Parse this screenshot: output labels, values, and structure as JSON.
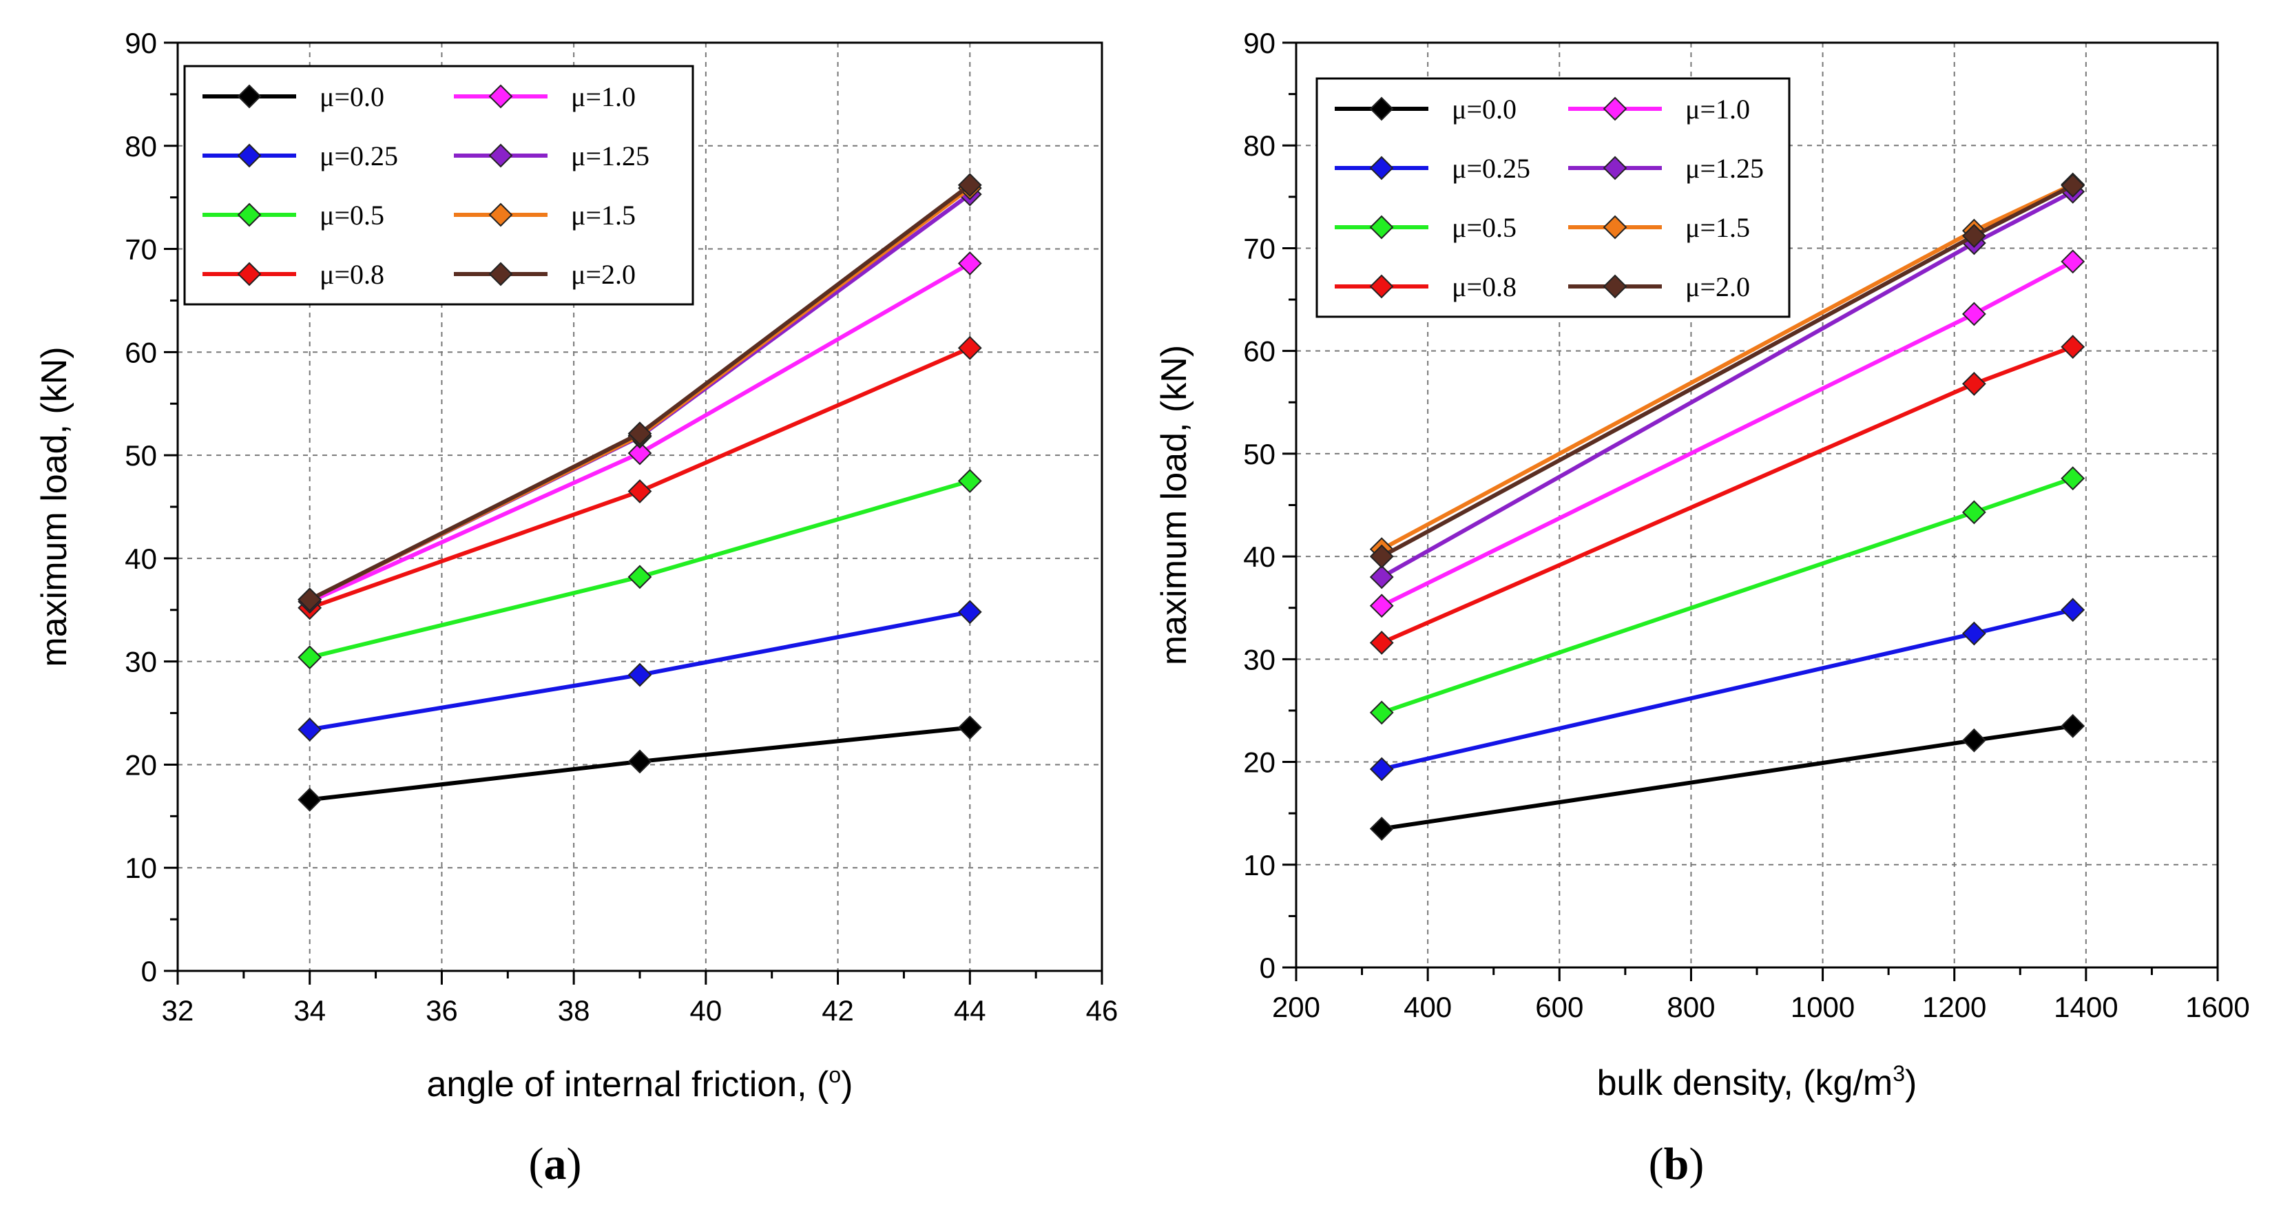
{
  "chart_data": [
    {
      "type": "line",
      "panel_label": [
        "(",
        "a",
        ")"
      ],
      "xlabel": "angle of internal friction, (",
      "xlabel_unit": "o",
      "xlabel_suffix": ")",
      "ylabel": "maximum load, (kN)",
      "xlim": [
        32,
        46
      ],
      "ylim": [
        0,
        90
      ],
      "xticks": [
        32,
        34,
        36,
        38,
        40,
        42,
        44,
        46
      ],
      "yticks": [
        0,
        10,
        20,
        30,
        40,
        50,
        60,
        70,
        80,
        90
      ],
      "grid": true,
      "legend_position": "top-left",
      "x": [
        34,
        39,
        44
      ],
      "series": [
        {
          "name": "μ=0.0",
          "color": "#000000",
          "values": [
            16.6,
            20.3,
            23.6
          ]
        },
        {
          "name": "μ=0.25",
          "color": "#1414e6",
          "values": [
            23.4,
            28.7,
            34.8
          ]
        },
        {
          "name": "μ=0.5",
          "color": "#22ee22",
          "values": [
            30.4,
            38.2,
            47.5
          ]
        },
        {
          "name": "μ=0.8",
          "color": "#ee1111",
          "values": [
            35.2,
            46.5,
            60.4
          ]
        },
        {
          "name": "μ=1.0",
          "color": "#ff22ff",
          "values": [
            35.8,
            50.2,
            68.6
          ]
        },
        {
          "name": "μ=1.25",
          "color": "#8a22c8",
          "values": [
            36.0,
            51.8,
            75.3
          ]
        },
        {
          "name": "μ=1.5",
          "color": "#f07a1a",
          "values": [
            36.0,
            51.9,
            75.9
          ]
        },
        {
          "name": "μ=2.0",
          "color": "#5a2e22",
          "values": [
            36.0,
            52.1,
            76.2
          ]
        }
      ]
    },
    {
      "type": "line",
      "panel_label": [
        "(",
        "b",
        ")"
      ],
      "xlabel": "bulk density, (kg/m",
      "xlabel_unit": "3",
      "xlabel_suffix": ")",
      "ylabel": "maximum load, (kN)",
      "xlim": [
        200,
        1600
      ],
      "ylim": [
        0,
        90
      ],
      "xticks": [
        200,
        400,
        600,
        800,
        1000,
        1200,
        1400,
        1600
      ],
      "yticks": [
        0,
        10,
        20,
        30,
        40,
        50,
        60,
        70,
        80,
        90
      ],
      "grid": true,
      "legend_position": "top-left",
      "x": [
        330,
        1230,
        1380
      ],
      "series": [
        {
          "name": "μ=0.0",
          "color": "#000000",
          "values": [
            13.5,
            22.1,
            23.5
          ]
        },
        {
          "name": "μ=0.25",
          "color": "#1414e6",
          "values": [
            19.3,
            32.5,
            34.8
          ]
        },
        {
          "name": "μ=0.5",
          "color": "#22ee22",
          "values": [
            24.8,
            44.3,
            47.6
          ]
        },
        {
          "name": "μ=0.8",
          "color": "#ee1111",
          "values": [
            31.6,
            56.8,
            60.4
          ]
        },
        {
          "name": "μ=1.0",
          "color": "#ff22ff",
          "values": [
            35.2,
            63.6,
            68.7
          ]
        },
        {
          "name": "μ=1.25",
          "color": "#8a22c8",
          "values": [
            38.0,
            70.5,
            75.5
          ]
        },
        {
          "name": "μ=1.5",
          "color": "#f07a1a",
          "values": [
            40.7,
            71.7,
            76.2
          ]
        },
        {
          "name": "μ=2.0",
          "color": "#5a2e22",
          "values": [
            40.0,
            71.2,
            76.1
          ]
        }
      ]
    }
  ]
}
